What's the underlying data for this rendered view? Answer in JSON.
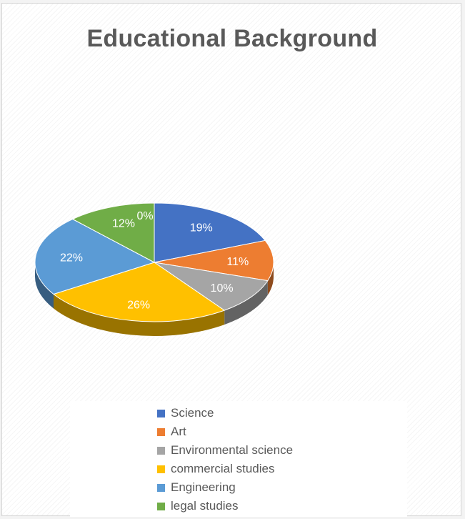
{
  "chart_data": {
    "type": "pie",
    "title": "Educational Background",
    "categories": [
      "Science",
      "Art",
      "Environmental science",
      "commercial studies",
      "Engineering",
      "legal studies",
      ""
    ],
    "values": [
      19,
      11,
      10,
      26,
      22,
      12,
      0
    ],
    "data_labels": [
      "19%",
      "11%",
      "10%",
      "26%",
      "22%",
      "12%",
      "0%"
    ],
    "colors": [
      "#4472c4",
      "#ed7d31",
      "#a5a5a5",
      "#ffc000",
      "#5b9bd5",
      "#70ad47",
      "#264478"
    ],
    "legend_position": "bottom",
    "style": "3d-pie"
  }
}
